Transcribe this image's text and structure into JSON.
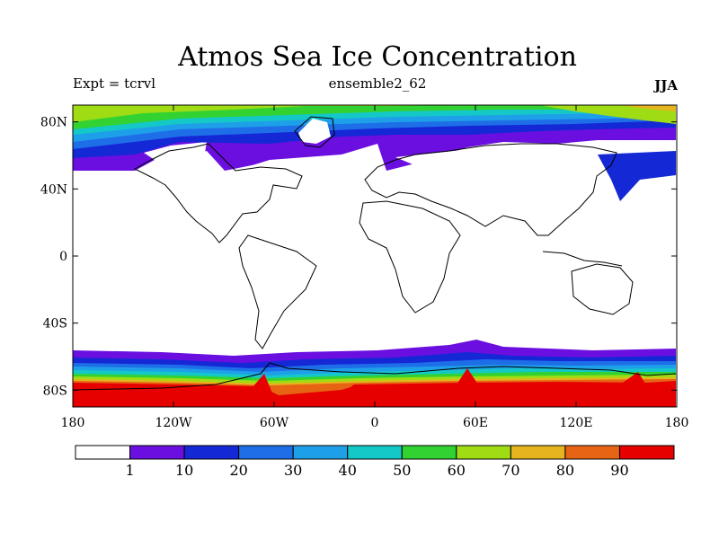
{
  "title": "Atmos Sea Ice Concentration",
  "subtitle_left": "Expt = tcrvl",
  "subtitle_center": "ensemble2_62",
  "subtitle_right": "JJA",
  "map": {
    "projection": "cylindrical-equidistant",
    "lon_range": [
      -180,
      180
    ],
    "lat_range": [
      -90,
      90
    ],
    "lat_ticks": [
      {
        "value": 80,
        "label": "80N"
      },
      {
        "value": 40,
        "label": "40N"
      },
      {
        "value": 0,
        "label": "0"
      },
      {
        "value": -40,
        "label": "40S"
      },
      {
        "value": -80,
        "label": "80S"
      }
    ],
    "lon_ticks": [
      {
        "value": -180,
        "label": "180"
      },
      {
        "value": -120,
        "label": "120W"
      },
      {
        "value": -60,
        "label": "60W"
      },
      {
        "value": 0,
        "label": "0"
      },
      {
        "value": 60,
        "label": "60E"
      },
      {
        "value": 120,
        "label": "120E"
      },
      {
        "value": 180,
        "label": "180"
      }
    ],
    "arctic_ice_edge_lat": 60,
    "antarctic_ice_edge_lat": -62
  },
  "colorbar": {
    "labels": [
      "1",
      "10",
      "20",
      "30",
      "40",
      "50",
      "60",
      "70",
      "80",
      "90"
    ],
    "colors": [
      "#ffffff",
      "#6a0fe0",
      "#1428d6",
      "#1e6ee8",
      "#1ea0e8",
      "#14c8c8",
      "#32d232",
      "#a0dc14",
      "#e6b41e",
      "#e66414",
      "#e60000"
    ]
  }
}
